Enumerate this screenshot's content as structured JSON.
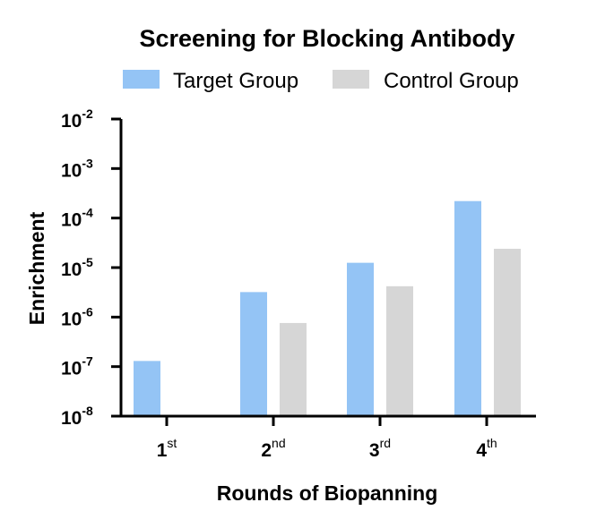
{
  "chart_data": {
    "type": "bar",
    "title": "Screening for Blocking Antibody",
    "xlabel": "Rounds of Biopanning",
    "ylabel": "Enrichment",
    "y_scale": "log",
    "ylim": [
      1e-08,
      0.01
    ],
    "categories": [
      {
        "base": "1",
        "sup": "st"
      },
      {
        "base": "2",
        "sup": "nd"
      },
      {
        "base": "3",
        "sup": "rd"
      },
      {
        "base": "4",
        "sup": "th"
      }
    ],
    "y_ticks": [
      {
        "base": "10",
        "exp": "-2"
      },
      {
        "base": "10",
        "exp": "-3"
      },
      {
        "base": "10",
        "exp": "-4"
      },
      {
        "base": "10",
        "exp": "-5"
      },
      {
        "base": "10",
        "exp": "-6"
      },
      {
        "base": "10",
        "exp": "-7"
      },
      {
        "base": "10",
        "exp": "-8"
      }
    ],
    "series": [
      {
        "name": "Target Group",
        "color": "#94c4f5",
        "values": [
          1.3e-07,
          3.2e-06,
          1.25e-05,
          0.00022
        ]
      },
      {
        "name": "Control Group",
        "color": "#d6d6d6",
        "values": [
          null,
          7.6e-07,
          4.2e-06,
          2.4e-05
        ]
      }
    ],
    "legend_position": "top",
    "grid": false
  }
}
